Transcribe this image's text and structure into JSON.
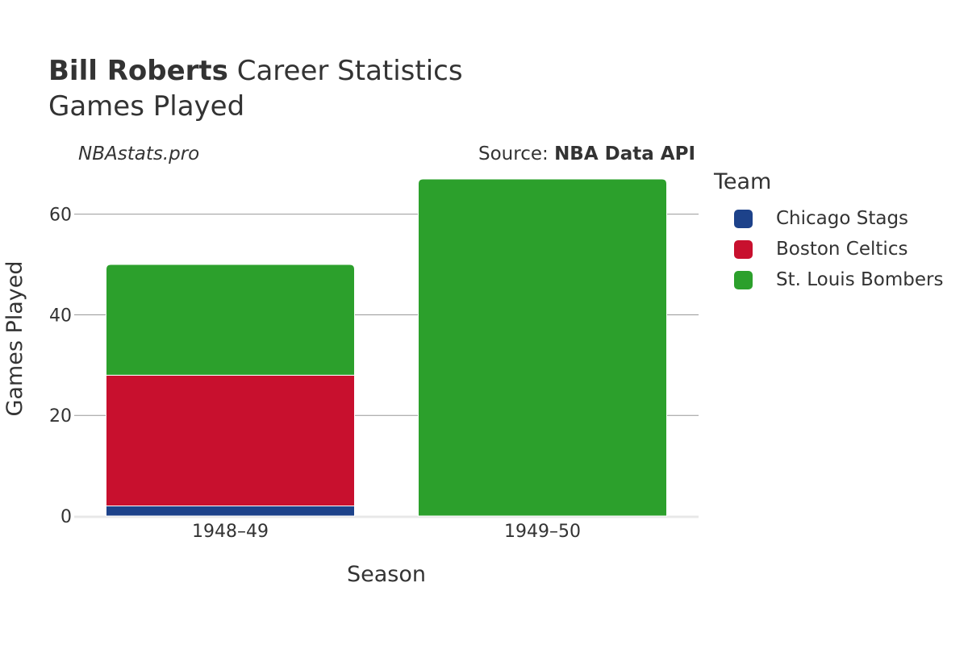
{
  "header": {
    "title_bold": "Bill Roberts",
    "title_rest": " Career Statistics",
    "subtitle": "Games Played"
  },
  "watermark": "NBAstats.pro",
  "source": {
    "prefix": "Source: ",
    "name": "NBA Data API"
  },
  "legend": {
    "title": "Team",
    "items": [
      {
        "label": "Chicago Stags",
        "color": "#1d428a"
      },
      {
        "label": "Boston Celtics",
        "color": "#c8102e"
      },
      {
        "label": "St. Louis Bombers",
        "color": "#2ca02c"
      }
    ]
  },
  "chart_data": {
    "type": "bar",
    "stacked": true,
    "categories": [
      "1948–49",
      "1949–50"
    ],
    "series": [
      {
        "name": "Chicago Stags",
        "color": "#1d428a",
        "values": [
          2,
          0
        ]
      },
      {
        "name": "Boston Celtics",
        "color": "#c8102e",
        "values": [
          26,
          0
        ]
      },
      {
        "name": "St. Louis Bombers",
        "color": "#2ca02c",
        "values": [
          22,
          67
        ]
      }
    ],
    "xlabel": "Season",
    "ylabel": "Games Played",
    "ylim": [
      0,
      67
    ],
    "yticks": [
      0,
      20,
      40,
      60
    ],
    "grid": true,
    "legend_position": "right"
  }
}
